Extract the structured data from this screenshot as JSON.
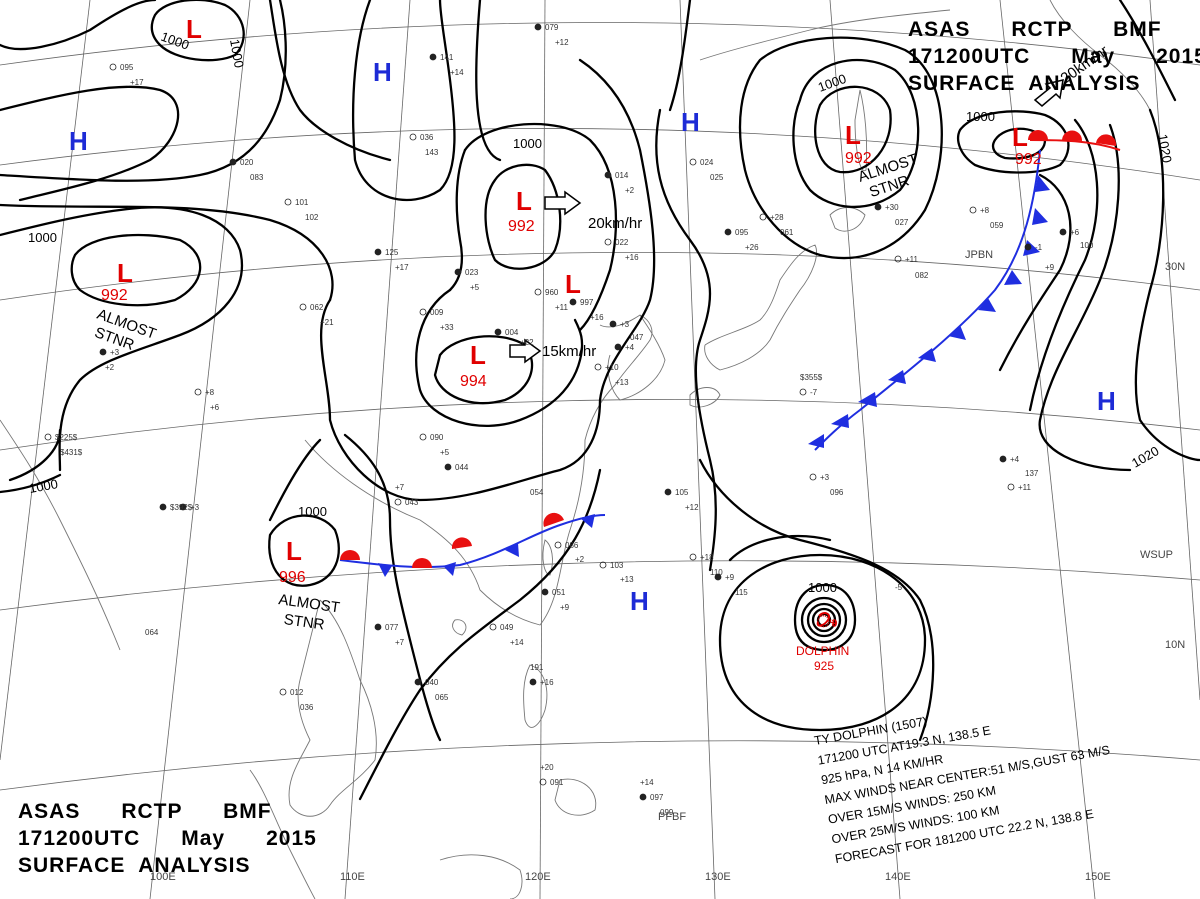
{
  "header": {
    "line1": "ASAS      RCTP      BMF",
    "line2": "171200UTC      May      2015",
    "line3": "SURFACE  ANALYSIS"
  },
  "isobar_labels": [
    "1000",
    "1000",
    "1000",
    "1000",
    "1000",
    "1000",
    "1000",
    "1000",
    "1000",
    "1020",
    "1020"
  ],
  "systems": {
    "lows": [
      {
        "label": "L",
        "pressure": "992",
        "note": "ALMOST\nSTNR"
      },
      {
        "label": "L",
        "pressure": "992",
        "note": "20km/hr"
      },
      {
        "label": "L",
        "pressure": "994",
        "note": "15km/hr"
      },
      {
        "label": "L",
        "pressure": "996",
        "note": "ALMOST\nSTNR"
      },
      {
        "label": "L",
        "pressure": "992",
        "note": "ALMOST\nSTNR"
      },
      {
        "label": "L",
        "pressure": "992",
        "note": "20km/hr"
      },
      {
        "label": "L",
        "pressure": "",
        "note": ""
      },
      {
        "label": "L",
        "pressure": "",
        "note": ""
      }
    ],
    "highs": [
      {
        "label": "H"
      },
      {
        "label": "H"
      },
      {
        "label": "H"
      },
      {
        "label": "H"
      },
      {
        "label": "H"
      }
    ]
  },
  "typhoon": {
    "name": "DOLPHIN",
    "pressure": "925",
    "info_lines": [
      "TY  DOLPHIN  (1507)",
      "171200 UTC  AT19.3 N, 138.5 E",
      "925 hPa, N  14 KM/HR",
      "MAX WINDS NEAR CENTER:51 M/S,GUST 63 M/S",
      "OVER 15M/S WINDS: 250 KM",
      "OVER 25M/S WINDS: 100 KM",
      "FORECAST FOR 181200 UTC 22.2 N, 138.8 E"
    ]
  },
  "geo_labels": {
    "longitudes": [
      "100E",
      "110E",
      "120E",
      "130E",
      "140E",
      "150E"
    ],
    "latitudes": [
      "30N",
      "10N"
    ],
    "places": [
      "JPBN",
      "WSUP",
      "PFBF"
    ]
  },
  "stations": [
    "079",
    "+12",
    "090",
    "+5",
    "044",
    "+7",
    "043",
    "054",
    "+3",
    "064",
    "012",
    "036",
    "040",
    "065",
    "049",
    "+14",
    "077",
    "+7",
    "086",
    "+2",
    "051",
    "+9",
    "103",
    "+13",
    "105",
    "+12",
    "+18",
    "110",
    "+9",
    "115",
    "+3",
    "096",
    "+4",
    "137",
    "+11",
    "191",
    "+16",
    "+20",
    "091",
    "+14",
    "097",
    "099",
    "095",
    "+17",
    "020",
    "083",
    "101",
    "102",
    "125",
    "+17",
    "062",
    "+21",
    "023",
    "+5",
    "009",
    "+33",
    "004",
    "+22",
    "960",
    "+11",
    "997",
    "+16",
    "022",
    "+16",
    "014",
    "+2",
    "024",
    "025",
    "095",
    "+26",
    "+28",
    "061",
    "+30",
    "027",
    "+8",
    "059",
    "+6",
    "100",
    "+11",
    "082",
    "+3",
    "047",
    "036",
    "143",
    "141",
    "+14",
    "+8",
    "+6",
    "+3",
    "+2",
    "$225$",
    "$431$",
    "$392$",
    "$355$",
    "-7",
    "-5",
    "-1",
    "+9",
    "+10",
    "+13",
    "+4"
  ],
  "colors": {
    "isobar": "#000000",
    "warm_front": "#e81010",
    "cold_front": "#1f2ee0",
    "low": "#e00000",
    "high": "#1d2bd6",
    "grid": "#555555",
    "coast": "#777777"
  }
}
